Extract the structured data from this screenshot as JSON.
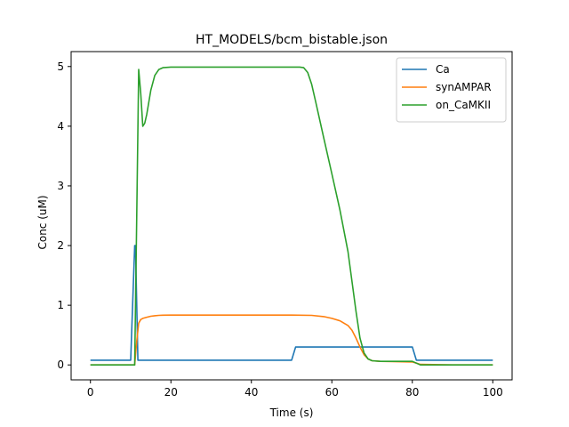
{
  "chart_data": {
    "type": "line",
    "title": "HT_MODELS/bcm_bistable.json",
    "xlabel": "Time (s)",
    "ylabel": "Conc (uM)",
    "xlim": [
      -4.8,
      104.8
    ],
    "ylim": [
      -0.25,
      5.25
    ],
    "xticks": [
      0,
      20,
      40,
      60,
      80,
      100
    ],
    "yticks": [
      0,
      1,
      2,
      3,
      4,
      5
    ],
    "grid": false,
    "legend_position": "top-right",
    "series": [
      {
        "name": "Ca",
        "color": "#1f77b4",
        "x": [
          0,
          10,
          11,
          11.2,
          11.8,
          12,
          20,
          40,
          50,
          51,
          60,
          70,
          80,
          81,
          90,
          100
        ],
        "y": [
          0.08,
          0.08,
          2.0,
          2.0,
          0.08,
          0.08,
          0.08,
          0.08,
          0.08,
          0.3,
          0.3,
          0.3,
          0.3,
          0.08,
          0.08,
          0.08
        ]
      },
      {
        "name": "synAMPAR",
        "color": "#ff7f0e",
        "x": [
          0,
          10,
          11,
          11.5,
          12,
          12.5,
          13,
          14,
          15,
          16,
          17,
          18,
          20,
          30,
          40,
          50,
          55,
          58,
          60,
          62,
          64,
          65,
          66,
          67,
          68,
          69,
          70,
          72,
          75,
          80,
          81,
          82,
          90,
          100
        ],
        "y": [
          0.0,
          0.0,
          0.0,
          0.4,
          0.7,
          0.76,
          0.78,
          0.8,
          0.815,
          0.825,
          0.83,
          0.833,
          0.835,
          0.835,
          0.835,
          0.835,
          0.83,
          0.81,
          0.78,
          0.74,
          0.66,
          0.58,
          0.45,
          0.3,
          0.17,
          0.1,
          0.07,
          0.06,
          0.055,
          0.05,
          0.03,
          0.01,
          0.0,
          0.0
        ]
      },
      {
        "name": "on_CaMKII",
        "color": "#2ca02c",
        "x": [
          0,
          10,
          11,
          11.5,
          12,
          12.5,
          13,
          13.5,
          14,
          15,
          16,
          17,
          18,
          20,
          30,
          40,
          50,
          52,
          53,
          54,
          55,
          56,
          58,
          60,
          62,
          64,
          65,
          66,
          67,
          68,
          69,
          70,
          72,
          75,
          80,
          81,
          82,
          85,
          90,
          100
        ],
        "y": [
          0.0,
          0.0,
          0.0,
          2.5,
          4.95,
          4.55,
          4.0,
          4.05,
          4.2,
          4.6,
          4.85,
          4.95,
          4.98,
          4.99,
          4.99,
          4.99,
          4.99,
          4.99,
          4.98,
          4.9,
          4.7,
          4.4,
          3.8,
          3.2,
          2.6,
          1.9,
          1.4,
          0.9,
          0.45,
          0.2,
          0.1,
          0.07,
          0.06,
          0.06,
          0.06,
          0.03,
          0.0,
          0.0,
          0.0,
          0.0
        ]
      }
    ]
  }
}
